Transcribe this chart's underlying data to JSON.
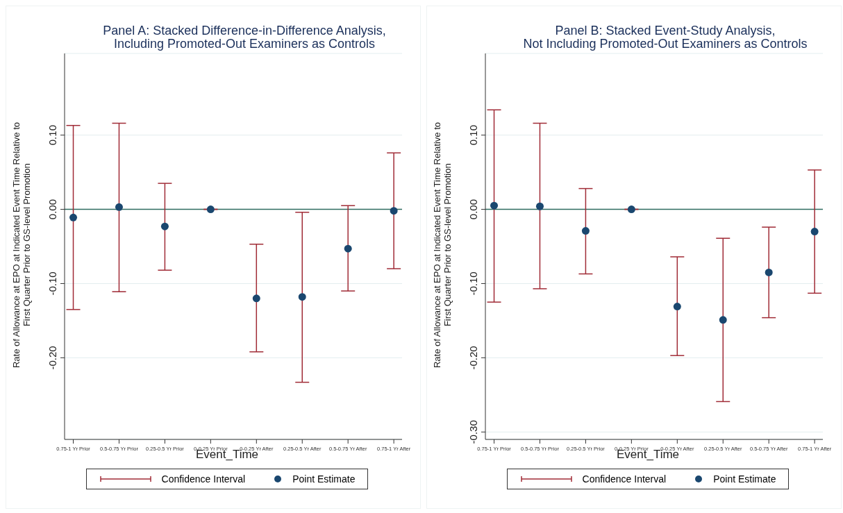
{
  "chart_data": [
    {
      "type": "scatter",
      "title": "Panel A: Stacked Difference-in-Difference Analysis,\nIncluding Promoted-Out Examiners as Controls",
      "xlabel": "Event_Time",
      "ylabel": "Rate of Allowance at EPO at Indicated Event Time Relative to\nFirst Quarter Prior to GS-level Promotion",
      "categories": [
        "0.75-1 Yr Prior",
        "0.5-0.75 Yr Prior",
        "0.25-0.5 Yr Prior",
        "0-0.25 Yr Prior",
        "0-0.25 Yr After",
        "0.25-0.5 Yr After",
        "0.5-0.75 Yr After",
        "0.75-1 Yr After"
      ],
      "series": [
        {
          "name": "Point Estimate",
          "color": "#a02b36",
          "colors": [
            "#1a476f",
            "#1a476f",
            "#1a476f",
            "#1a476f",
            "#1a476f",
            "#1a476f",
            "#1a476f",
            "#1a476f"
          ],
          "marker": "circle",
          "values": [
            -0.011,
            0.003,
            -0.023,
            0,
            -0.12,
            -0.118,
            -0.053,
            -0.002
          ],
          "errors": [
            [
              -0.135,
              0.113
            ],
            [
              -0.111,
              0.116
            ],
            [
              -0.082,
              0.035
            ],
            null,
            [
              -0.192,
              -0.047
            ],
            [
              -0.233,
              -0.004
            ],
            [
              -0.11,
              0.005
            ],
            [
              -0.08,
              0.076
            ]
          ]
        }
      ],
      "annotations": [
        "Confidence Interval"
      ],
      "ylim": [
        -0.31,
        0.21
      ],
      "yticks": [
        {
          "value": 0.1,
          "label": "0.10"
        },
        {
          "value": 0,
          "label": "0.00"
        },
        {
          "value": -0.1,
          "label": "-0.10"
        },
        {
          "value": -0.2,
          "label": "-0.20"
        }
      ],
      "ref_lines": [
        {
          "axis": "y",
          "value": 0,
          "color": "#2f6b5f"
        }
      ],
      "grid": "y",
      "legend": "bottom"
    },
    {
      "type": "scatter",
      "title": "Panel B: Stacked Event-Study Analysis,\nNot Including Promoted-Out Examiners as Controls",
      "xlabel": "Event_Time",
      "ylabel": "Rate of Allowance at EPO at Indicated Event Time Relative to\nFirst Quarter Prior to GS-level Promotion",
      "categories": [
        "0.75-1 Yr Prior",
        "0.5-0.75 Yr Prior",
        "0.25-0.5 Yr Prior",
        "0-0.25 Yr Prior",
        "0-0.25 Yr After",
        "0.25-0.5 Yr After",
        "0.5-0.75 Yr After",
        "0.75-1 Yr After"
      ],
      "series": [
        {
          "name": "Point Estimate",
          "color": "#a02b36",
          "colors": [
            "#1a476f",
            "#1a476f",
            "#1a476f",
            "#1a476f",
            "#1a476f",
            "#1a476f",
            "#1a476f",
            "#1a476f"
          ],
          "marker": "circle",
          "values": [
            0.005,
            0.004,
            -0.029,
            0,
            -0.131,
            -0.149,
            -0.085,
            -0.03
          ],
          "errors": [
            [
              -0.125,
              0.134
            ],
            [
              -0.107,
              0.116
            ],
            [
              -0.087,
              0.028
            ],
            null,
            [
              -0.197,
              -0.064
            ],
            [
              -0.259,
              -0.039
            ],
            [
              -0.146,
              -0.024
            ],
            [
              -0.113,
              0.053
            ]
          ]
        }
      ],
      "annotations": [
        "Confidence Interval"
      ],
      "ylim": [
        -0.31,
        0.21
      ],
      "yticks": [
        {
          "value": 0.1,
          "label": "0.10"
        },
        {
          "value": 0,
          "label": "0.00"
        },
        {
          "value": -0.1,
          "label": "-0.10"
        },
        {
          "value": -0.2,
          "label": "-0.20"
        },
        {
          "value": -0.3,
          "label": "-0.30"
        }
      ],
      "ref_lines": [
        {
          "axis": "y",
          "value": 0,
          "color": "#2f6b5f"
        }
      ],
      "grid": "y",
      "legend": "bottom"
    }
  ]
}
